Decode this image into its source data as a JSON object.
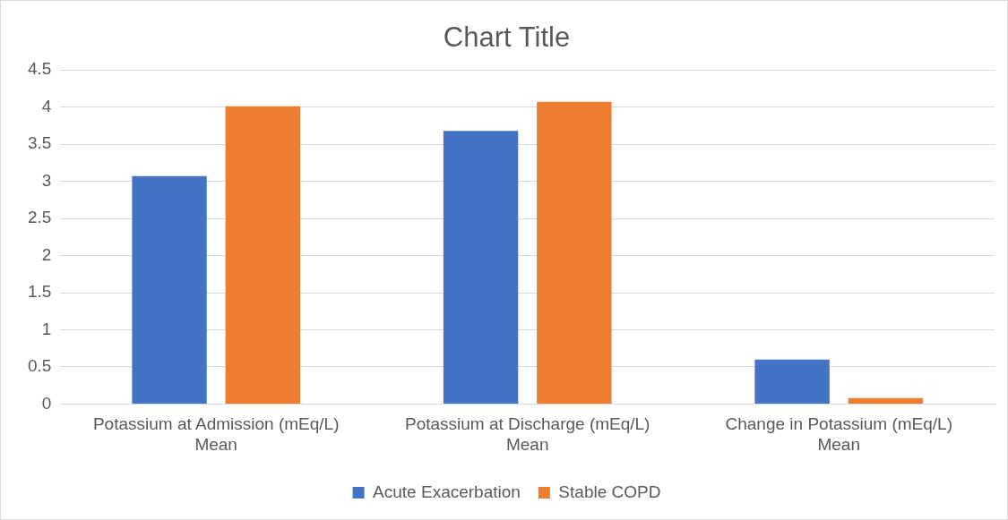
{
  "chart_data": {
    "type": "bar",
    "title": "Chart Title",
    "categories": [
      "Potassium at Admission (mEq/L) Mean",
      "Potassium at Discharge (mEq/L) Mean",
      "Change in Potassium (mEq/L) Mean"
    ],
    "series": [
      {
        "name": "Acute Exacerbation",
        "color": "#4472c4",
        "values": [
          3.07,
          3.68,
          0.6
        ]
      },
      {
        "name": "Stable COPD",
        "color": "#ed7d31",
        "values": [
          4.01,
          4.07,
          0.08
        ]
      }
    ],
    "ylim": [
      0,
      4.5
    ],
    "yticks": [
      0,
      0.5,
      1,
      1.5,
      2,
      2.5,
      3,
      3.5,
      4,
      4.5
    ],
    "grid": "y",
    "legend": "bottom"
  }
}
